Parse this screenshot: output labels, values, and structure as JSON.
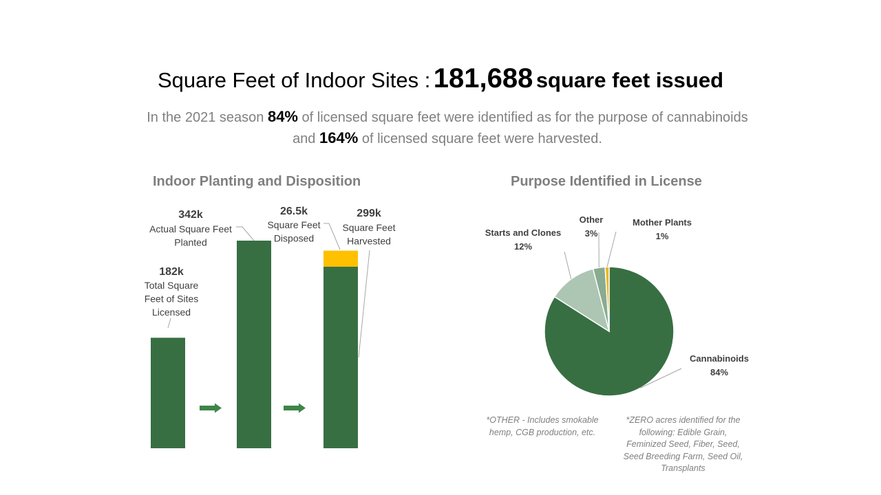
{
  "header": {
    "title_prefix": "Square Feet of Indoor Sites :",
    "title_number": "181,688",
    "title_suffix": "square feet issued",
    "subtitle_part1": "In the 2021 season ",
    "subtitle_pct1": "84%",
    "subtitle_part2": " of licensed square feet were identified as for the purpose of cannabinoids and ",
    "subtitle_pct2": "164%",
    "subtitle_part3": " of licensed square feet were harvested."
  },
  "colors": {
    "green": "#376f43",
    "arrow": "#3e8547",
    "yellow": "#ffc000",
    "light_green": "#adc6b3",
    "mid_green": "#89ab90",
    "pie_gold": "#e8b820",
    "leader": "#a6a6a6",
    "label_gray": "#404040"
  },
  "notes": {
    "other": "*OTHER - Includes smokable hemp, CGB production, etc.",
    "zero": "*ZERO acres identified for the following: Edible Grain, Feminized Seed, Fiber, Seed, Seed Breeding Farm, Seed Oil, Transplants"
  },
  "chart_data": [
    {
      "type": "bar",
      "title": "Indoor Planting and Disposition",
      "unit": "square feet",
      "bars": [
        {
          "value_label": "182k",
          "label_lines": [
            "Total Square",
            "Feet of Sites",
            "Licensed"
          ],
          "value": 182000,
          "base": 0,
          "color": "green"
        },
        {
          "value_label": "342k",
          "label_lines": [
            "Actual Square Feet",
            "Planted"
          ],
          "value": 342000,
          "base": 0,
          "color": "green"
        },
        {
          "value_label": "26.5k",
          "label_lines": [
            "Square Feet",
            "Disposed"
          ],
          "value": 26500,
          "base": 299000,
          "color": "yellow"
        },
        {
          "value_label": "299k",
          "label_lines": [
            "Square Feet",
            "Harvested"
          ],
          "value": 299000,
          "base": 0,
          "color": "green"
        }
      ],
      "arrows": [
        "arrow-right-icon",
        "arrow-right-icon"
      ]
    },
    {
      "type": "pie",
      "title": "Purpose Identified in License",
      "slices": [
        {
          "label": "Cannabinoids",
          "value": 84,
          "value_label": "84%",
          "color": "green"
        },
        {
          "label": "Starts and Clones",
          "value": 12,
          "value_label": "12%",
          "color": "light_green"
        },
        {
          "label": "Other",
          "value": 3,
          "value_label": "3%",
          "color": "mid_green"
        },
        {
          "label": "Mother Plants",
          "value": 1,
          "value_label": "1%",
          "color": "pie_gold"
        }
      ]
    }
  ]
}
